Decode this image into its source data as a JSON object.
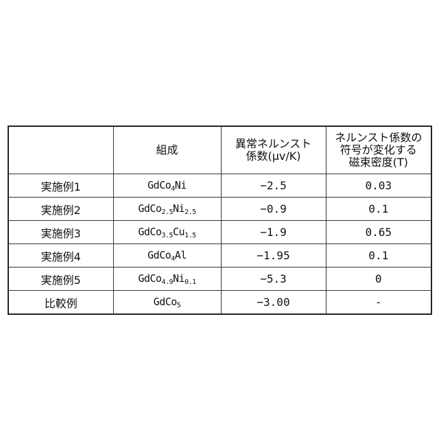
{
  "table": {
    "headers": {
      "blank": "",
      "composition": "組成",
      "nernst_lines": [
        "異常ネルンスト",
        "係数(μv/K)"
      ],
      "field_lines": [
        "ネルンスト係数の",
        "符号が変化する",
        "磁束密度(T)"
      ]
    },
    "rows": [
      {
        "label": "実施例1",
        "formula": [
          {
            "text": "GdCo"
          },
          {
            "sub": "4"
          },
          {
            "text": "Ni"
          }
        ],
        "nernst": "−2.5",
        "field": "0.03"
      },
      {
        "label": "実施例2",
        "formula": [
          {
            "text": "GdCo"
          },
          {
            "sub": "2.5"
          },
          {
            "text": "Ni"
          },
          {
            "sub": "2.5"
          }
        ],
        "nernst": "−0.9",
        "field": "0.1"
      },
      {
        "label": "実施例3",
        "formula": [
          {
            "text": "GdCo"
          },
          {
            "sub": "3.5"
          },
          {
            "text": "Cu"
          },
          {
            "sub": "1.5"
          }
        ],
        "nernst": "−1.9",
        "field": "0.65"
      },
      {
        "label": "実施例4",
        "formula": [
          {
            "text": "GdCo"
          },
          {
            "sub": "4"
          },
          {
            "text": "Al"
          }
        ],
        "nernst": "−1.95",
        "field": "0.1"
      },
      {
        "label": "実施例5",
        "formula": [
          {
            "text": "GdCo"
          },
          {
            "sub": "4.9"
          },
          {
            "text": "Ni"
          },
          {
            "sub": "0.1"
          }
        ],
        "nernst": "−5.3",
        "field": "0"
      },
      {
        "label": "比較例",
        "formula": [
          {
            "text": "GdCo"
          },
          {
            "sub": "5"
          }
        ],
        "nernst": "−3.00",
        "field": "-"
      }
    ]
  }
}
